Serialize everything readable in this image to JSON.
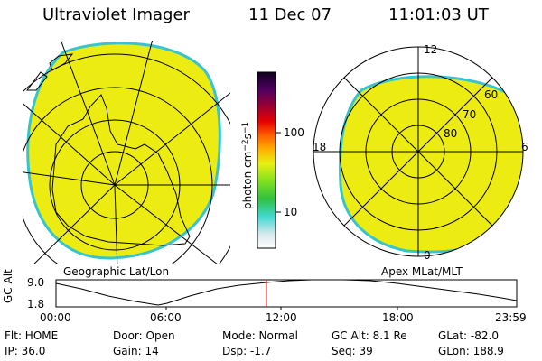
{
  "header": {
    "instrument": "Ultraviolet Imager",
    "date": "11 Dec 07",
    "time": "11:01:03 UT"
  },
  "colors": {
    "aurora_fill": "#ecec12",
    "aurora_edge": "#36c4d0",
    "marker_line": "#ff0000"
  },
  "colorbar": {
    "unit_label": "photon cm⁻²s⁻¹",
    "tick_labels": [
      "100",
      "10"
    ]
  },
  "left_map": {
    "caption": "Geographic Lat/Lon"
  },
  "right_map": {
    "caption": "Apex MLat/MLT",
    "mlt_labels": [
      "12",
      "18",
      "6",
      "0"
    ],
    "mlat_labels": [
      "60",
      "70",
      "80"
    ]
  },
  "altitude_panel": {
    "ylabel": "GC Alt",
    "y_ticks": [
      "9.0",
      "1.8"
    ],
    "x_ticks": [
      "00:00",
      "06:00",
      "12:00",
      "18:00",
      "23:59"
    ],
    "marker_time": "11:01"
  },
  "info": {
    "flt": "Flt: HOME",
    "ip": "IP: 36.0",
    "door": "Door: Open",
    "gain": "Gain: 14",
    "mode": "Mode: Normal",
    "dsp": "Dsp:      -1.7",
    "gc_alt": "GC Alt: 8.1 Re",
    "seq": "Seq: 39",
    "glat": "GLat: -82.0",
    "glon": "GLon: 188.9"
  }
}
